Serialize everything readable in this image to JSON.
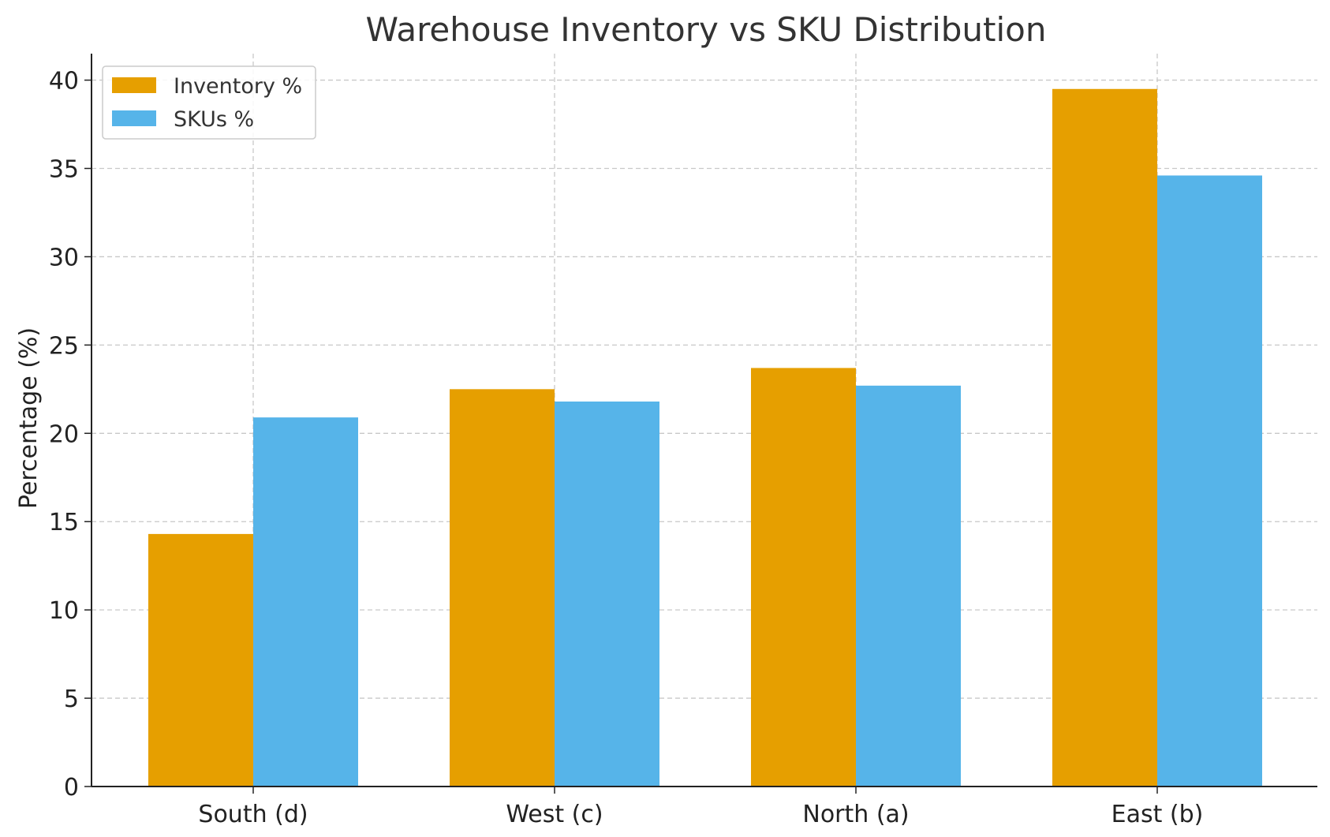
{
  "chart_data": {
    "type": "bar",
    "title": "Warehouse Inventory vs SKU Distribution",
    "xlabel": "",
    "ylabel": "Percentage (%)",
    "categories": [
      "South (d)",
      "West (c)",
      "North (a)",
      "East (b)"
    ],
    "series": [
      {
        "name": "Inventory %",
        "color": "#E69F00",
        "values": [
          14.3,
          22.5,
          23.7,
          39.5
        ]
      },
      {
        "name": "SKUs %",
        "color": "#56B4E9",
        "values": [
          20.9,
          21.8,
          22.7,
          34.6
        ]
      }
    ],
    "ylim": [
      0,
      41.5
    ],
    "yticks": [
      0,
      5,
      10,
      15,
      20,
      25,
      30,
      35,
      40
    ],
    "grid": true,
    "legend_position": "top-left"
  }
}
